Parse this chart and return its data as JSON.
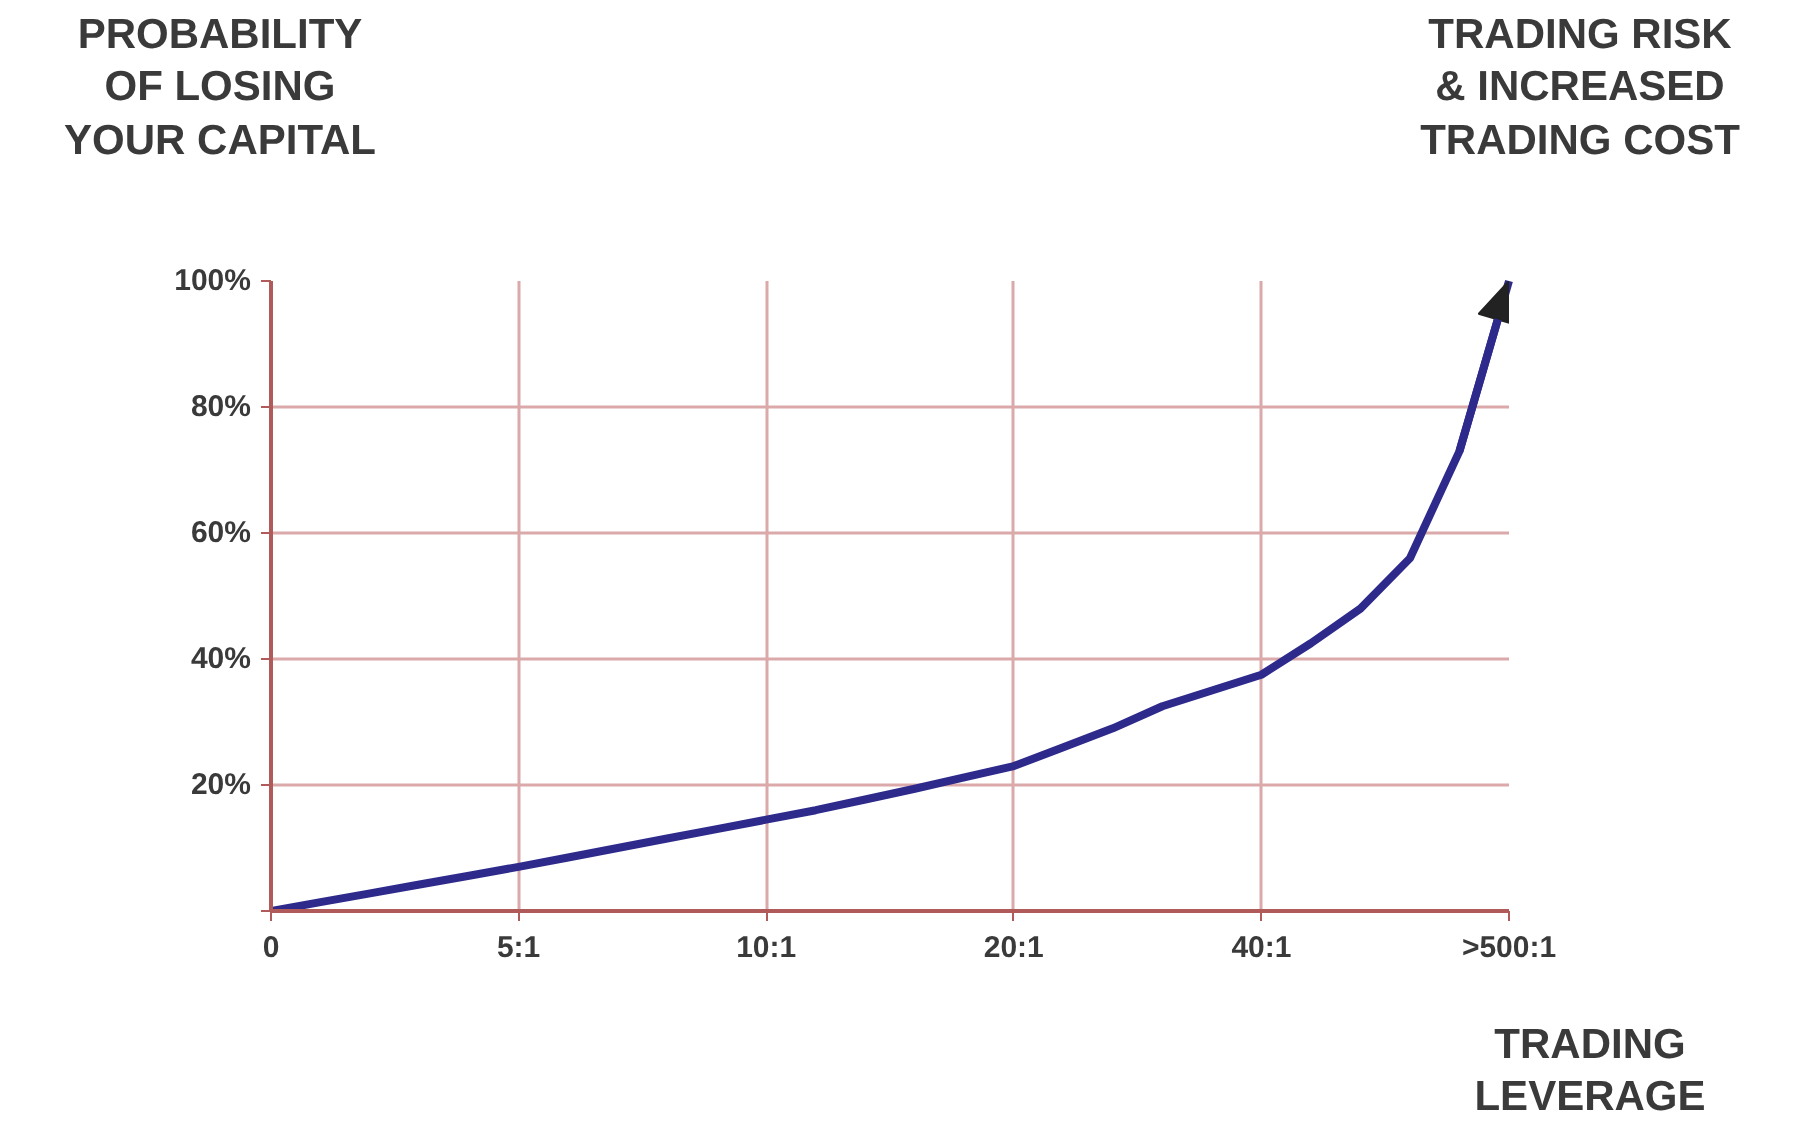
{
  "chart_data": {
    "type": "line",
    "ylabel": "PROBABILITY\nOF LOSING\nYOUR CAPITAL",
    "xlabel": "TRADING\nLEVERAGE",
    "annotations": [
      "TRADING RISK\n& INCREASED\nTRADING COST"
    ],
    "categories": [
      "0",
      null,
      null,
      null,
      null,
      "5:1",
      null,
      null,
      null,
      null,
      "10:1",
      null,
      null,
      null,
      null,
      "20:1",
      null,
      null,
      null,
      null,
      "40:1",
      null,
      null,
      null,
      null,
      ">500:1"
    ],
    "ylim": [
      0,
      100
    ],
    "yticks": [
      {
        "value": 0,
        "label": null
      },
      {
        "value": 20,
        "label": "20%"
      },
      {
        "value": 40,
        "label": "40%"
      },
      {
        "value": 60,
        "label": "60%"
      },
      {
        "value": 80,
        "label": "80%"
      },
      {
        "value": 100,
        "label": "100%"
      }
    ],
    "grid": true,
    "series": [
      {
        "color": "#2e2a8c",
        "values": [
          0,
          1.4,
          2.8,
          4.2,
          5.6,
          7,
          8.5,
          10,
          11.5,
          13,
          14.5,
          16,
          17.7,
          19.4,
          21.2,
          23,
          26,
          29,
          32.5,
          35,
          37.5,
          42.5,
          48,
          56,
          73,
          100
        ]
      }
    ]
  }
}
